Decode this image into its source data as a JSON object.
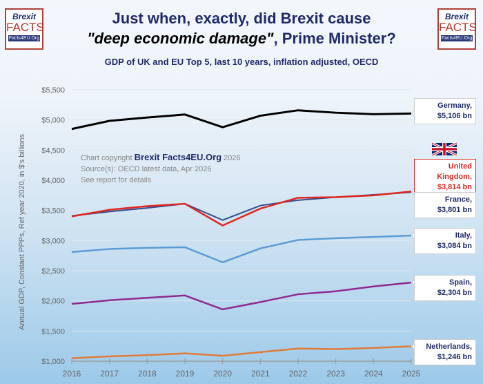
{
  "header": {
    "title_line1": "Just when, exactly, did Brexit cause",
    "title_line2_quote": "\"deep economic damage\"",
    "title_line2_rest": ", Prime Minister?",
    "subtitle": "GDP of UK and EU Top 5, last 10 years, inflation adjusted, OECD"
  },
  "logo": {
    "line1": "Brexit",
    "line2": "FACTS",
    "line3": "Facts4EU.Org"
  },
  "copyright": {
    "prefix": "Chart copyright",
    "brand": "Brexit Facts4EU.Org",
    "year": "2026",
    "source": "Source(s): OECD latest data, Apr 2026",
    "note": "See report for details"
  },
  "chart_data": {
    "type": "line",
    "ylabel": "Annual GDP, Constant PPPs, Ref year 2020, in $'s billions",
    "x": [
      2016,
      2017,
      2018,
      2019,
      2020,
      2021,
      2022,
      2023,
      2024,
      2025
    ],
    "ylim": [
      1000,
      5500
    ],
    "yticks": [
      "$1,000",
      "$1,500",
      "$2,000",
      "$2,500",
      "$3,000",
      "$3,500",
      "$4,000",
      "$4,500",
      "$5,000",
      "$5,500"
    ],
    "grid": true,
    "series": [
      {
        "name": "Germany",
        "label": "$5,106 bn",
        "color": "#000000",
        "width": 3,
        "values": [
          4850,
          4985,
          5040,
          5090,
          4880,
          5070,
          5160,
          5120,
          5095,
          5106
        ]
      },
      {
        "name": "United Kingdom",
        "label": "$3,814 bn",
        "color": "#e0261f",
        "width": 2.5,
        "values": [
          3400,
          3510,
          3570,
          3610,
          3250,
          3530,
          3710,
          3720,
          3750,
          3814
        ]
      },
      {
        "name": "France",
        "label": "$3,801 bn",
        "color": "#2f4f8f",
        "width": 2,
        "values": [
          3410,
          3480,
          3540,
          3610,
          3340,
          3580,
          3670,
          3720,
          3760,
          3801
        ]
      },
      {
        "name": "Italy",
        "label": "$3,084 bn",
        "color": "#5b9bd5",
        "width": 2.5,
        "values": [
          2810,
          2860,
          2880,
          2890,
          2640,
          2870,
          3010,
          3040,
          3060,
          3084
        ]
      },
      {
        "name": "Spain",
        "label": "$2,304 bn",
        "color": "#8e2a8e",
        "width": 2.5,
        "values": [
          1950,
          2010,
          2050,
          2090,
          1860,
          1980,
          2110,
          2160,
          2240,
          2304
        ]
      },
      {
        "name": "Netherlands",
        "label": "$1,246 bn",
        "color": "#e07b39",
        "width": 2.5,
        "values": [
          1050,
          1080,
          1100,
          1130,
          1090,
          1150,
          1210,
          1200,
          1220,
          1246
        ]
      }
    ]
  }
}
